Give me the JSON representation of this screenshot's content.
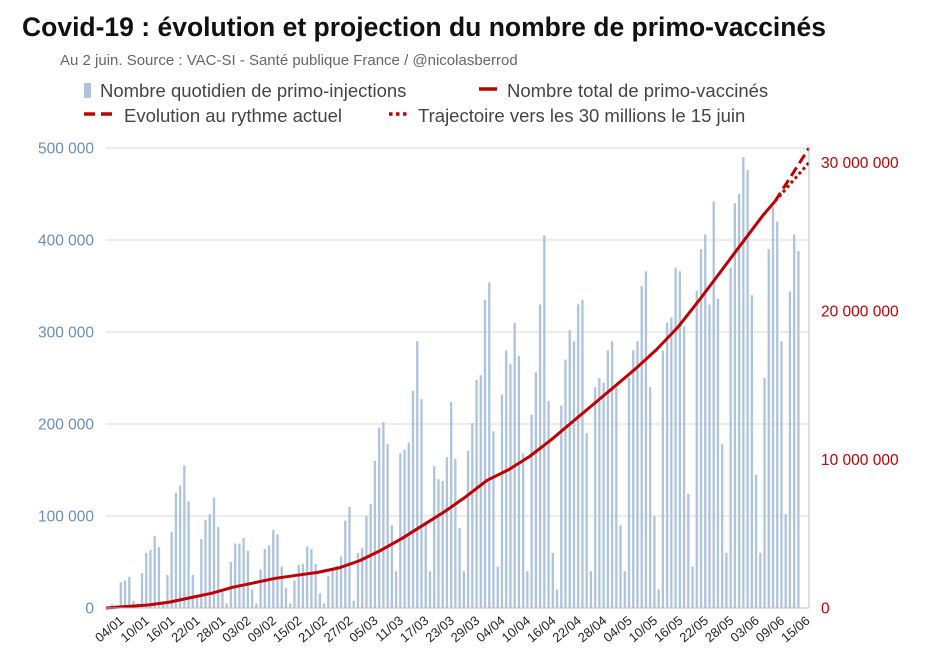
{
  "title": "Covid-19 : évolution et projection du nombre de primo-vaccinés",
  "subtitle": "Au 2 juin. Source : VAC-SI - Santé publique France / @nicolasberrod",
  "colors": {
    "bars": "#aec4de",
    "line": "#c00000",
    "left_axis": "#6a8fb5",
    "right_axis": "#c00000",
    "grid": "#d9d9d9"
  },
  "chart_data": {
    "type": "bar",
    "title": "Covid-19 : évolution et projection du nombre de primo-vaccinés",
    "start_date": "2021-01-01",
    "x_ticks": [
      "04/01",
      "10/01",
      "16/01",
      "22/01",
      "28/01",
      "03/02",
      "09/02",
      "15/02",
      "21/02",
      "27/02",
      "05/03",
      "11/03",
      "17/03",
      "23/03",
      "29/03",
      "04/04",
      "10/04",
      "16/04",
      "22/04",
      "28/04",
      "04/05",
      "10/05",
      "16/05",
      "22/05",
      "28/05",
      "03/06",
      "09/06",
      "15/06"
    ],
    "x_tick_day_offsets": [
      3,
      9,
      15,
      21,
      27,
      33,
      39,
      45,
      51,
      57,
      63,
      69,
      75,
      81,
      87,
      93,
      99,
      105,
      111,
      117,
      123,
      129,
      135,
      141,
      147,
      153,
      159,
      165
    ],
    "x_range_days": [
      0,
      166
    ],
    "left_axis": {
      "ylim": [
        0,
        500000
      ],
      "ticks": [
        0,
        100000,
        200000,
        300000,
        400000,
        500000
      ],
      "tick_labels": [
        "0",
        "100 000",
        "200 000",
        "300 000",
        "400 000",
        "500 000"
      ]
    },
    "right_axis": {
      "ylim": [
        0,
        30980000
      ],
      "ticks": [
        0,
        10000000,
        20000000,
        30000000
      ],
      "tick_labels": [
        "0",
        "10 000 000",
        "20 000 000",
        "30 000 000"
      ]
    },
    "legend": [
      {
        "label": "Nombre quotidien de primo-injections",
        "style": "bar"
      },
      {
        "label": "Nombre total de primo-vaccinés",
        "style": "solid"
      },
      {
        "label": "Evolution au rythme actuel",
        "style": "dashed"
      },
      {
        "label": "Trajectoire vers les 30 millions le 15 juin",
        "style": "dotted"
      }
    ],
    "series": [
      {
        "name": "Nombre quotidien de primo-injections",
        "type": "bar",
        "axis": "left",
        "start_day_offset": 0,
        "values": [
          1000,
          4000,
          3000,
          28000,
          30000,
          34000,
          8000,
          5000,
          38000,
          60000,
          63000,
          78000,
          66000,
          5000,
          36000,
          83000,
          125000,
          133000,
          155000,
          116000,
          36000,
          14000,
          75000,
          96000,
          102000,
          120000,
          88000,
          18000,
          5000,
          50000,
          70000,
          70000,
          76000,
          62000,
          20000,
          5000,
          42000,
          64000,
          68000,
          85000,
          80000,
          45000,
          22000,
          5000,
          30000,
          47000,
          48000,
          67000,
          64000,
          48000,
          16000,
          5000,
          35000,
          43000,
          46000,
          56000,
          95000,
          110000,
          8000,
          60000,
          65000,
          100000,
          113000,
          160000,
          196000,
          202000,
          178000,
          90000,
          40000,
          168000,
          172000,
          180000,
          236000,
          290000,
          227000,
          94000,
          40000,
          154000,
          140000,
          138000,
          164000,
          224000,
          162000,
          87000,
          40000,
          171000,
          201000,
          248000,
          253000,
          335000,
          354000,
          192000,
          45000,
          232000,
          280000,
          265000,
          310000,
          274000,
          168000,
          40000,
          210000,
          256000,
          330000,
          405000,
          225000,
          60000,
          20000,
          220000,
          270000,
          302000,
          290000,
          330000,
          335000,
          190000,
          40000,
          240000,
          250000,
          245000,
          280000,
          290000,
          240000,
          90000,
          40000,
          250000,
          280000,
          290000,
          350000,
          366000,
          240000,
          100000,
          20000,
          280000,
          310000,
          316000,
          370000,
          366000,
          306000,
          124000,
          45000,
          345000,
          390000,
          406000,
          330000,
          442000,
          336000,
          178000,
          60000,
          370000,
          440000,
          450000,
          490000,
          476000,
          340000,
          145000,
          60000,
          250000,
          390000,
          436000,
          420000,
          290000,
          102000,
          344000,
          406000,
          388000
        ]
      },
      {
        "name": "Nombre total de primo-vaccinés",
        "type": "line",
        "style": "solid",
        "axis": "right",
        "points": [
          [
            0,
            0
          ],
          [
            10,
            200000
          ],
          [
            15,
            400000
          ],
          [
            20,
            700000
          ],
          [
            25,
            1000000
          ],
          [
            30,
            1400000
          ],
          [
            35,
            1700000
          ],
          [
            40,
            2000000
          ],
          [
            45,
            2200000
          ],
          [
            50,
            2400000
          ],
          [
            55,
            2700000
          ],
          [
            60,
            3200000
          ],
          [
            65,
            3900000
          ],
          [
            70,
            4700000
          ],
          [
            75,
            5600000
          ],
          [
            80,
            6500000
          ],
          [
            85,
            7500000
          ],
          [
            90,
            8600000
          ],
          [
            95,
            9300000
          ],
          [
            100,
            10200000
          ],
          [
            105,
            11300000
          ],
          [
            110,
            12500000
          ],
          [
            115,
            13700000
          ],
          [
            120,
            14900000
          ],
          [
            125,
            16100000
          ],
          [
            130,
            17400000
          ],
          [
            135,
            18900000
          ],
          [
            140,
            20700000
          ],
          [
            145,
            22600000
          ],
          [
            150,
            24500000
          ],
          [
            155,
            26400000
          ],
          [
            158,
            27400000
          ]
        ]
      },
      {
        "name": "Evolution au rythme actuel",
        "type": "line",
        "style": "dashed",
        "axis": "right",
        "points": [
          [
            158,
            27400000
          ],
          [
            166,
            30980000
          ]
        ]
      },
      {
        "name": "Trajectoire vers les 30 millions le 15 juin",
        "type": "line",
        "style": "dotted",
        "axis": "right",
        "points": [
          [
            158,
            27400000
          ],
          [
            166,
            30000000
          ]
        ]
      }
    ]
  }
}
